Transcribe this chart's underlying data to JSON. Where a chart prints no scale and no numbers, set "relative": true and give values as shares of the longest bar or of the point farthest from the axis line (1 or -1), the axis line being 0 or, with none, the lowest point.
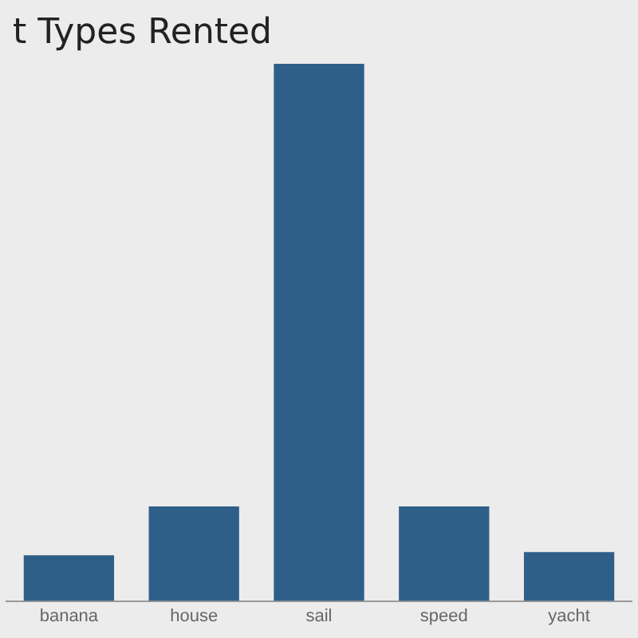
{
  "chart_data": {
    "type": "bar",
    "title": "t Types Rented",
    "categories": [
      "banana",
      "house",
      "sail",
      "speed",
      "yacht"
    ],
    "values": [
      0.085,
      0.176,
      1,
      0.176,
      0.091
    ],
    "color": "#2f5f88",
    "relative": true,
    "grid": false,
    "legend": false
  }
}
